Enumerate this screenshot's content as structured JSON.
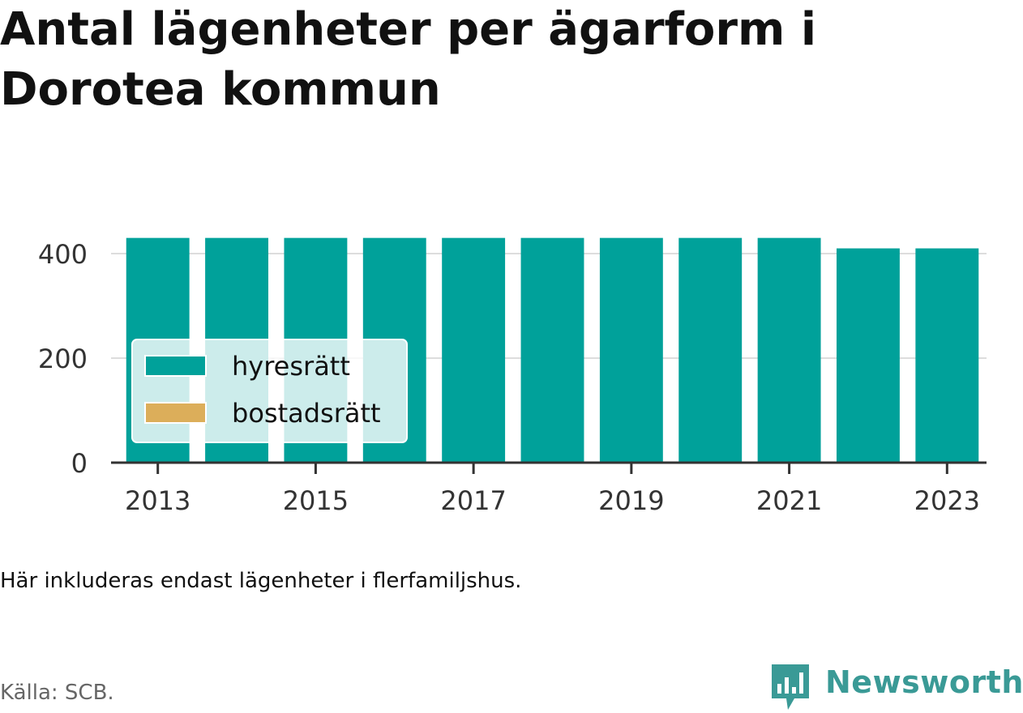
{
  "title": "Antal lägenheter per ägarform i Dorotea kommun",
  "note": "Här inkluderas endast lägenheter i flerfamiljshus.",
  "source": "Källa: SCB.",
  "brand": {
    "name": "Newsworthy",
    "color": "#3a9a96",
    "icon": "bar-chart-speech-bubble-icon"
  },
  "chart_data": {
    "type": "bar",
    "stacked": true,
    "categories": [
      "2013",
      "2014",
      "2015",
      "2016",
      "2017",
      "2018",
      "2019",
      "2020",
      "2021",
      "2022",
      "2023"
    ],
    "x_tick_labels": [
      "2013",
      "2015",
      "2017",
      "2019",
      "2021",
      "2023"
    ],
    "y_ticks": [
      0,
      200,
      400
    ],
    "ylim": [
      0,
      430
    ],
    "grid": true,
    "legend_position": "bottom-left",
    "series": [
      {
        "name": "hyresrätt",
        "color": "#00a19a",
        "values": [
          430,
          430,
          430,
          430,
          430,
          430,
          430,
          430,
          430,
          410,
          410
        ]
      },
      {
        "name": "bostadsrätt",
        "color": "#dcae5a",
        "values": [
          0,
          0,
          0,
          0,
          0,
          0,
          0,
          0,
          0,
          0,
          0
        ]
      }
    ]
  }
}
